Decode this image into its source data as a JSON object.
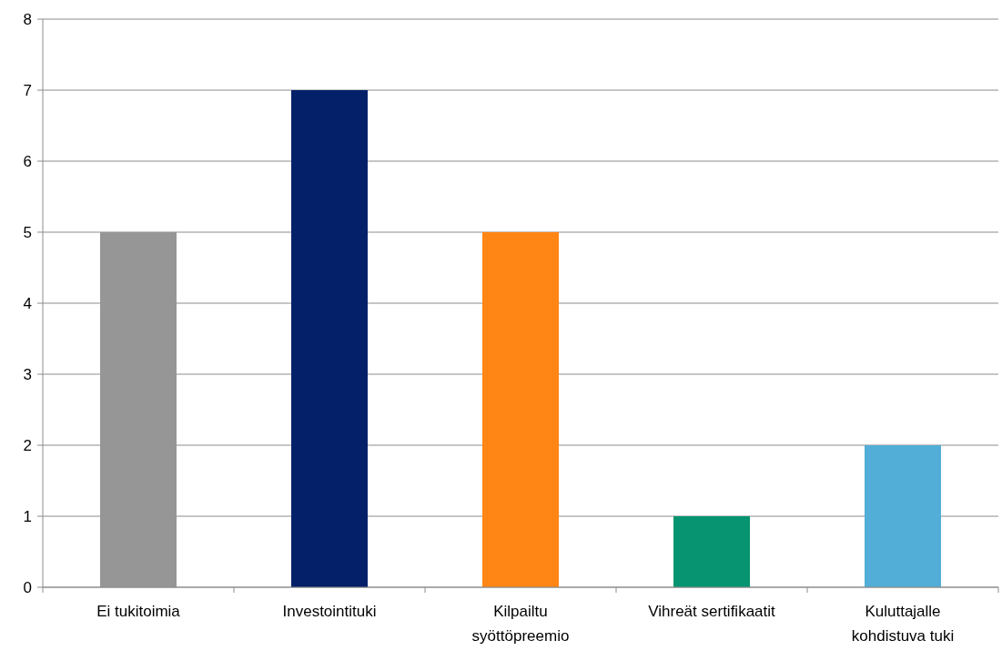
{
  "chart_data": {
    "type": "bar",
    "categories": [
      "Ei tukitoimia",
      "Investointituki",
      "Kilpailtu syöttöpreemio",
      "Vihreät sertifikaatit",
      "Kuluttajalle kohdistuva tuki"
    ],
    "values": [
      5,
      7,
      5,
      1,
      2
    ],
    "colors": [
      "#969696",
      "#042069",
      "#ff8514",
      "#079470",
      "#52aed6"
    ],
    "ylim": [
      0,
      8
    ],
    "yticks": [
      0,
      1,
      2,
      3,
      4,
      5,
      6,
      7,
      8
    ],
    "grid": "y"
  }
}
